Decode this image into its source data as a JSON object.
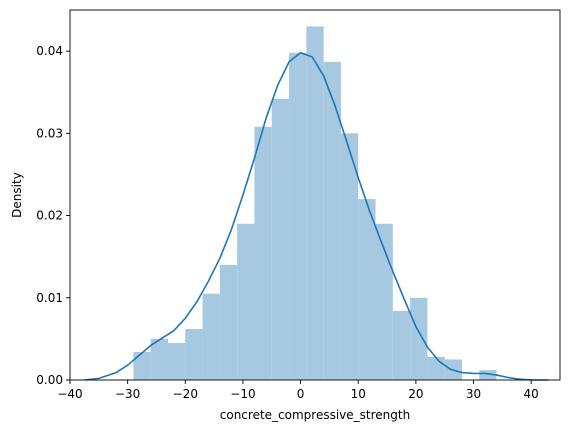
{
  "chart_data": {
    "type": "histogram",
    "xlabel": "concrete_compressive_strength",
    "ylabel": "Density",
    "xlim": [
      -40,
      45
    ],
    "ylim": [
      0,
      0.045
    ],
    "xticks": [
      -40,
      -30,
      -20,
      -10,
      0,
      10,
      20,
      30,
      40
    ],
    "yticks": [
      0.0,
      0.01,
      0.02,
      0.03,
      0.04
    ],
    "xtick_labels": [
      "−40",
      "−30",
      "−20",
      "−10",
      "0",
      "10",
      "20",
      "30",
      "40"
    ],
    "ytick_labels": [
      "0.00",
      "0.01",
      "0.02",
      "0.03",
      "0.04"
    ],
    "grid": false,
    "bar_color": "#a6c8e0",
    "line_color": "#1f77b4",
    "histogram": {
      "bin_edges": [
        -29,
        -26,
        -23,
        -20,
        -17,
        -14,
        -11,
        -8,
        -5,
        -2,
        1,
        4,
        7,
        10,
        13,
        16,
        19,
        22,
        25,
        28,
        31,
        34
      ],
      "density": [
        0.0034,
        0.005,
        0.0045,
        0.0062,
        0.0105,
        0.014,
        0.019,
        0.0308,
        0.0342,
        0.0398,
        0.043,
        0.0387,
        0.03,
        0.022,
        0.019,
        0.0084,
        0.01,
        0.0028,
        0.0025,
        0.0,
        0.0012
      ]
    },
    "kde": {
      "x": [
        -37.5,
        -35,
        -32,
        -30,
        -28,
        -26,
        -24,
        -22,
        -20,
        -18,
        -16,
        -14,
        -12,
        -10,
        -8,
        -6,
        -4,
        -2,
        0,
        2,
        4,
        6,
        8,
        10,
        12,
        14,
        16,
        18,
        20,
        22,
        24,
        26,
        28,
        30,
        32,
        34,
        36,
        38,
        40,
        43
      ],
      "y": [
        0.0,
        0.0002,
        0.0009,
        0.0018,
        0.003,
        0.0042,
        0.0051,
        0.006,
        0.0075,
        0.0095,
        0.012,
        0.0148,
        0.0183,
        0.0225,
        0.027,
        0.0318,
        0.0358,
        0.0387,
        0.0398,
        0.0393,
        0.037,
        0.0333,
        0.029,
        0.0246,
        0.0205,
        0.0168,
        0.0132,
        0.0098,
        0.0065,
        0.004,
        0.0023,
        0.0013,
        0.0009,
        0.0008,
        0.0008,
        0.0006,
        0.0003,
        0.0001,
        0.0,
        0.0
      ]
    }
  }
}
